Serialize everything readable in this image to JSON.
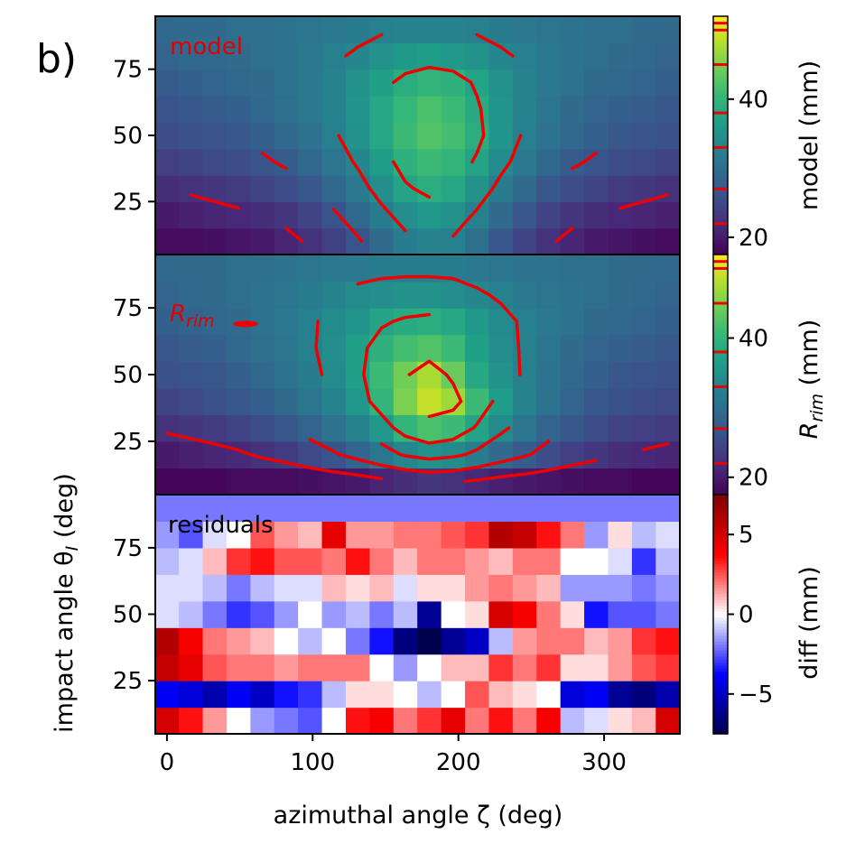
{
  "panel_label": "b)",
  "chart_data": {
    "type": "heatmap",
    "xlabel": "azimuthal angle ζ (deg)",
    "ylabel": "impact angle θ_I (deg)",
    "x_ticks": [
      "0",
      "100",
      "200",
      "300"
    ],
    "x_tick_values": [
      0,
      100,
      200,
      300
    ],
    "xlim": [
      -8,
      352
    ],
    "ylim": [
      5,
      95
    ],
    "y_tick_values": [
      25,
      50,
      75
    ],
    "x_centers": [
      0,
      16.4,
      32.7,
      49.1,
      65.5,
      81.8,
      98.2,
      114.5,
      130.9,
      147.3,
      163.6,
      180,
      196.4,
      212.7,
      229.1,
      245.5,
      261.8,
      278.2,
      294.5,
      310.9,
      327.3,
      343.6
    ],
    "y_centers": [
      10,
      20,
      30,
      40,
      50,
      60,
      70,
      80,
      90
    ],
    "panels": [
      {
        "name": "model",
        "label": "model",
        "y_ticks": [
          "25",
          "50",
          "75"
        ],
        "colorbar": {
          "label": "model (mm)",
          "ticks": [
            "20",
            "40"
          ],
          "tick_values": [
            20,
            40
          ],
          "range": [
            17.5,
            52
          ],
          "colormap": "viridis",
          "marks": [
            22,
            27,
            33,
            38,
            45,
            50,
            51
          ]
        },
        "contour_levels": [
          22,
          27,
          33,
          38,
          45,
          50,
          51
        ],
        "values": [
          [
            18.5,
            18.5,
            19,
            19.5,
            20,
            21,
            22.5,
            24,
            26.5,
            29.5,
            32,
            33,
            32.5,
            30,
            27,
            24.5,
            22.5,
            21,
            20,
            19.5,
            19,
            18.5
          ],
          [
            20,
            20.5,
            21,
            21.5,
            22,
            23,
            24.5,
            26.5,
            29,
            32,
            34.5,
            36,
            35,
            32.5,
            29.5,
            27,
            24.5,
            23,
            22,
            21.5,
            21,
            20.5
          ],
          [
            22,
            22.5,
            23,
            23.5,
            24.5,
            25.5,
            27,
            29,
            31.5,
            34.5,
            37.5,
            39,
            38,
            35,
            32,
            29.5,
            27,
            25.5,
            24.5,
            23.5,
            23,
            22.5
          ],
          [
            24,
            24.5,
            25,
            25.5,
            26.5,
            27.5,
            29,
            31,
            33.5,
            36.5,
            39.5,
            41,
            40,
            37.5,
            34,
            31.5,
            29,
            27.5,
            26.5,
            25.5,
            25,
            24.5
          ],
          [
            25.5,
            26,
            26.5,
            27,
            28,
            29,
            30.5,
            32.5,
            35,
            38,
            41,
            42.5,
            41.5,
            39,
            35.5,
            32.5,
            30.5,
            29,
            28,
            27,
            26.5,
            26
          ],
          [
            26.5,
            27,
            27.5,
            28,
            29,
            30,
            31.5,
            33,
            35.5,
            38,
            40.5,
            42,
            41,
            38.5,
            35.5,
            33,
            31,
            29.5,
            28.5,
            28,
            27.5,
            27
          ],
          [
            27.5,
            28,
            28.5,
            29,
            29.5,
            30.5,
            31.5,
            33,
            35,
            37,
            39,
            40,
            39.5,
            37.5,
            35,
            33,
            31.5,
            30.5,
            29.5,
            29,
            28.5,
            28
          ],
          [
            28.5,
            29,
            29,
            29.5,
            30,
            30.5,
            31.5,
            32.5,
            33.5,
            35,
            36,
            36.5,
            36,
            35,
            33.5,
            32.5,
            31.5,
            30.5,
            30,
            29.5,
            29,
            28.5
          ],
          [
            29,
            29.5,
            29.5,
            30,
            30,
            30.5,
            31,
            31.5,
            32,
            32.5,
            33,
            33,
            33,
            32.5,
            32,
            31.5,
            31,
            30.5,
            30,
            30,
            29.5,
            29.5
          ]
        ]
      },
      {
        "name": "rim",
        "label": "R_rim",
        "y_ticks": [
          "25",
          "50",
          "75"
        ],
        "colorbar": {
          "label": "R_rim (mm)",
          "ticks": [
            "20",
            "40"
          ],
          "tick_values": [
            20,
            40
          ],
          "range": [
            17.5,
            52
          ],
          "colormap": "viridis",
          "marks": [
            22,
            27,
            33,
            38,
            45,
            50,
            51
          ]
        },
        "contour_levels": [
          22,
          27,
          33,
          38,
          45,
          50,
          51
        ],
        "values": [
          [
            18,
            18,
            18,
            18.5,
            18.5,
            18.5,
            19,
            19.5,
            20,
            21,
            22,
            23,
            22.5,
            21.5,
            20.5,
            20,
            19.5,
            19,
            18.5,
            18.5,
            18,
            18
          ],
          [
            20,
            20.5,
            21,
            21.5,
            22.5,
            23.5,
            25,
            26.5,
            28.5,
            31,
            33.5,
            35,
            34,
            32,
            29.5,
            27.5,
            25.5,
            24,
            23,
            22,
            21.5,
            21
          ],
          [
            22.5,
            23,
            23.5,
            24.5,
            25.5,
            27,
            28.5,
            30.5,
            33,
            36,
            40,
            42,
            41,
            37.5,
            34,
            31,
            28.5,
            27,
            25.5,
            24.5,
            24,
            23.5
          ],
          [
            24.5,
            25,
            26,
            27,
            28,
            29.5,
            31,
            33,
            36,
            40,
            45,
            49,
            47,
            41,
            36.5,
            33,
            30.5,
            28.5,
            27,
            26,
            25.5,
            25
          ],
          [
            26,
            26.5,
            27,
            28,
            29,
            30.5,
            32,
            34,
            37,
            41,
            44.5,
            47.5,
            44,
            38,
            35,
            32.5,
            30.5,
            29,
            28,
            27,
            26.5,
            26
          ],
          [
            27,
            27.5,
            28,
            29,
            30,
            31,
            32.5,
            34.5,
            37,
            39.5,
            41.5,
            42.5,
            41,
            37,
            34.5,
            32.5,
            31,
            29.5,
            28.5,
            28,
            27.5,
            27
          ],
          [
            28,
            28.5,
            29,
            29.5,
            30.5,
            31.5,
            32.5,
            34,
            35.5,
            37.5,
            38.5,
            39,
            38,
            36,
            34,
            32.5,
            31.5,
            30.5,
            29.5,
            29,
            28.5,
            28
          ],
          [
            28.5,
            29,
            29.5,
            30,
            30.5,
            31,
            32,
            33,
            34,
            34.5,
            35,
            35,
            34.5,
            33.5,
            32.5,
            31.5,
            31,
            30.5,
            30,
            29.5,
            29,
            28.5
          ],
          [
            29,
            29.5,
            29.5,
            30,
            30,
            30.5,
            31,
            31.5,
            31.5,
            32,
            32,
            32,
            32,
            31.5,
            31,
            30.5,
            30.5,
            30,
            30,
            29.5,
            29.5,
            29
          ]
        ],
        "annotations": [
          {
            "type": "contour_blob",
            "x": 54,
            "y": 69
          }
        ]
      },
      {
        "name": "residuals",
        "label": "residuals",
        "y_ticks": [
          "25",
          "50",
          "75"
        ],
        "colorbar": {
          "label": "diff (mm)",
          "ticks": [
            "5",
            "0",
            "−5"
          ],
          "tick_values": [
            5,
            0,
            -5
          ],
          "range": [
            -7.5,
            7.5
          ],
          "colormap": "seismic"
        },
        "values": [
          [
            5,
            3.5,
            1.5,
            0,
            -1.5,
            -2,
            -2.5,
            0,
            3.5,
            4,
            2,
            3,
            4.5,
            2,
            3.5,
            2,
            4,
            -1,
            -0.5,
            0.5,
            1,
            5
          ],
          [
            -4,
            -4.5,
            -5.5,
            -4,
            -5,
            -3.5,
            -3,
            -1,
            0.5,
            0.5,
            0,
            -1,
            0,
            2.5,
            1,
            0.5,
            0,
            -4.5,
            -4,
            -6,
            -6.5,
            -5.5
          ],
          [
            5.5,
            4.5,
            2.5,
            2,
            2,
            1.5,
            2,
            2,
            2,
            0,
            -1.5,
            0,
            1,
            1,
            3,
            2,
            3,
            0.5,
            0.5,
            1.5,
            2.5,
            3
          ],
          [
            6,
            4,
            2,
            1.5,
            1,
            0,
            -1,
            0,
            -2,
            -3.5,
            -6.5,
            -7.5,
            -6,
            -5,
            -1,
            1.5,
            2,
            2,
            1,
            1.5,
            3,
            3.5
          ],
          [
            -0.5,
            -1,
            -2,
            -3,
            -2.5,
            -1.5,
            0,
            -1.5,
            -1,
            -2,
            -1,
            -6,
            0,
            0.5,
            5,
            4,
            2,
            0.5,
            -3.5,
            -2.5,
            -2.5,
            -2
          ],
          [
            -0.5,
            -0.5,
            -1,
            -2,
            -1,
            -0.5,
            -0.5,
            1,
            0.5,
            1,
            -0.5,
            0.5,
            0.5,
            1.5,
            2,
            1.5,
            1,
            -1.5,
            -1.5,
            -1.5,
            -2,
            -1.5
          ],
          [
            -1,
            -0.5,
            1,
            3,
            3.5,
            2.5,
            2.5,
            2,
            3.5,
            2,
            1,
            2,
            2,
            1.5,
            1,
            2,
            2,
            0,
            0,
            -0.5,
            -3,
            -1
          ],
          [
            -1.5,
            -2.5,
            -0.5,
            0,
            2.5,
            1.5,
            1,
            4.5,
            1.5,
            1.5,
            2,
            2,
            2.5,
            3,
            6,
            5.5,
            3.5,
            2,
            -1.5,
            0.5,
            -1,
            -0.5
          ],
          [
            -2,
            -2,
            -2,
            -2,
            -2,
            -2,
            -2,
            -2,
            -2,
            -2,
            -2,
            -2,
            -2,
            -2,
            -2,
            -2,
            -2,
            -2,
            -2,
            -2,
            -2,
            -2
          ]
        ]
      }
    ]
  }
}
